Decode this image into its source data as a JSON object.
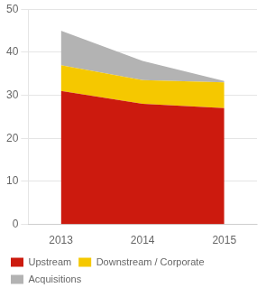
{
  "chart_data": {
    "type": "area",
    "stacked": true,
    "x": [
      2013,
      2014,
      2015
    ],
    "series": [
      {
        "name": "Upstream",
        "color": "#cc1a0e",
        "values": [
          31.0,
          28.0,
          27.0
        ]
      },
      {
        "name": "Downstream / Corporate",
        "color": "#f5c800",
        "values": [
          6.0,
          5.5,
          6.0
        ]
      },
      {
        "name": "Acquisitions",
        "color": "#b3b3b3",
        "values": [
          8.0,
          4.5,
          0.3
        ]
      }
    ],
    "xlim": [
      2012.6,
      2015.4
    ],
    "xticks": [
      2013,
      2014,
      2015
    ],
    "ylim": [
      0,
      50
    ],
    "yticks": [
      0,
      10,
      20,
      30,
      40,
      50
    ],
    "grid": true,
    "legend": "bottom"
  }
}
